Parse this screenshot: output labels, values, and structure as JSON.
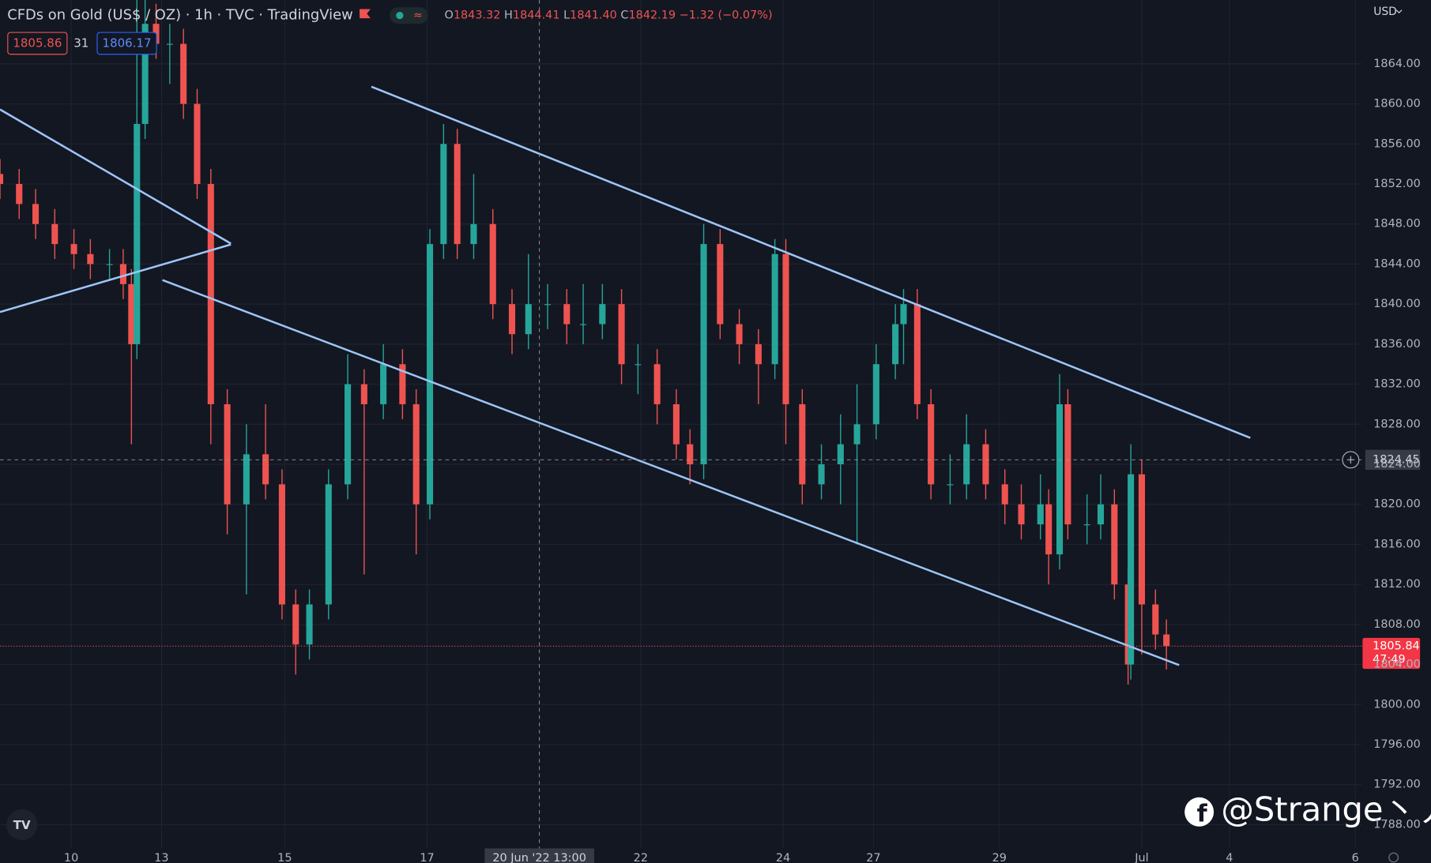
{
  "header": {
    "title": "CFDs on Gold (US$ / OZ) · 1h · TVC · TradingView",
    "ohlc": [
      {
        "key": "O",
        "value": "1843.32"
      },
      {
        "key": "H",
        "value": "1844.41"
      },
      {
        "key": "L",
        "value": "1841.40"
      },
      {
        "key": "C",
        "value": "1842.19"
      }
    ],
    "change": "−1.32 (−0.07%)",
    "sell": "1805.86",
    "spread": "31",
    "buy": "1806.17"
  },
  "watermark": "@Strange丶丿",
  "chart_data": {
    "type": "candlestick",
    "x": [
      0,
      7,
      13,
      20,
      27,
      33,
      40,
      45,
      48,
      50,
      53,
      57,
      62,
      67,
      72,
      77,
      83,
      90,
      97,
      103,
      108,
      113,
      120,
      127,
      133,
      140,
      147,
      152,
      157,
      162,
      167,
      173,
      180,
      187,
      193,
      200,
      207,
      213,
      220,
      227,
      233,
      240,
      247,
      252,
      257,
      263,
      270,
      277,
      283,
      287,
      293,
      300,
      307,
      313,
      320,
      327,
      330,
      335,
      340,
      347,
      353,
      360,
      367,
      373,
      380,
      383,
      387,
      390,
      397,
      402,
      407,
      412,
      413,
      417,
      422,
      426
    ],
    "open": [
      1853,
      1852,
      1850,
      1848,
      1846,
      1845,
      1844,
      1844,
      1842,
      1836,
      1858,
      1868,
      1866,
      1866,
      1860,
      1852,
      1830,
      1820,
      1825,
      1822,
      1810,
      1806,
      1810,
      1822,
      1832,
      1830,
      1834,
      1830,
      1820,
      1846,
      1856,
      1846,
      1848,
      1840,
      1837,
      1840,
      1840,
      1838,
      1838,
      1840,
      1834,
      1834,
      1830,
      1826,
      1824,
      1846,
      1838,
      1836,
      1834,
      1845,
      1830,
      1822,
      1824,
      1826,
      1828,
      1834,
      1838,
      1840,
      1830,
      1822,
      1822,
      1826,
      1822,
      1820,
      1818,
      1820,
      1815,
      1830,
      1818,
      1818,
      1820,
      1812,
      1804,
      1823,
      1810,
      1807
    ],
    "high": [
      1854.5,
      1853.5,
      1851.5,
      1849.5,
      1847.5,
      1846.5,
      1845.5,
      1845.5,
      1843.5,
      1872,
      1871,
      1870,
      1868,
      1867.5,
      1861.5,
      1853.5,
      1831.5,
      1828,
      1830,
      1823.5,
      1811.5,
      1811.5,
      1823.5,
      1835,
      1833.5,
      1836,
      1835.5,
      1831.5,
      1847.5,
      1858,
      1857.5,
      1853,
      1849.5,
      1841.5,
      1845,
      1842,
      1841.5,
      1842,
      1842,
      1841.5,
      1836,
      1835.5,
      1831.5,
      1827.5,
      1848,
      1847.5,
      1839.5,
      1837.5,
      1846.5,
      1846.5,
      1831.5,
      1826,
      1829,
      1832,
      1836,
      1840,
      1841.5,
      1841.5,
      1831.5,
      1825,
      1829,
      1827.5,
      1823.5,
      1822,
      1823,
      1821.5,
      1833,
      1831.5,
      1821,
      1823,
      1821.5,
      1813.5,
      1826,
      1824.5,
      1811.5,
      1808.5
    ],
    "low": [
      1850.5,
      1848.5,
      1846.5,
      1844.5,
      1843.5,
      1842.5,
      1842.5,
      1840.5,
      1826,
      1834.5,
      1856.5,
      1864.5,
      1862,
      1858.5,
      1850.5,
      1826,
      1817,
      1811,
      1820.5,
      1808.5,
      1803,
      1804.5,
      1808.5,
      1820.5,
      1813,
      1828.5,
      1828.5,
      1815,
      1818.5,
      1844.5,
      1844.5,
      1844.5,
      1838.5,
      1835,
      1835.5,
      1837.5,
      1836,
      1836,
      1836.5,
      1832,
      1831,
      1828,
      1824.5,
      1822,
      1822.5,
      1836.5,
      1834,
      1830,
      1832.5,
      1826,
      1820,
      1820.5,
      1820,
      1816,
      1826.5,
      1832.5,
      1834,
      1828.5,
      1820.5,
      1820,
      1820.5,
      1820.5,
      1818,
      1816.5,
      1816.5,
      1812,
      1813.5,
      1816.5,
      1816,
      1816.5,
      1810.5,
      1802,
      1802.5,
      1805,
      1805.5,
      1803.5
    ],
    "close": [
      1852,
      1850,
      1848,
      1846,
      1845,
      1844,
      1844,
      1842,
      1836,
      1858,
      1868,
      1866,
      1866,
      1860,
      1852,
      1830,
      1820,
      1825,
      1822,
      1810,
      1806,
      1810,
      1822,
      1832,
      1830,
      1834,
      1830,
      1820,
      1846,
      1856,
      1846,
      1848,
      1840,
      1837,
      1840,
      1840,
      1838,
      1838,
      1840,
      1834,
      1834,
      1830,
      1826,
      1824,
      1846,
      1838,
      1836,
      1834,
      1845,
      1830,
      1822,
      1824,
      1826,
      1828,
      1834,
      1838,
      1840,
      1830,
      1822,
      1822,
      1826,
      1822,
      1820,
      1818,
      1820,
      1815,
      1830,
      1818,
      1818,
      1820,
      1812,
      1804,
      1823,
      1810,
      1807,
      1805.84
    ],
    "colors": {
      "up": "#26a69a",
      "down": "#ef5350"
    },
    "xlim": [
      0,
      497.3
    ],
    "ylim": [
      1785.63,
      1870.38
    ],
    "xticks": [
      {
        "value": 26,
        "label": "10"
      },
      {
        "value": 59,
        "label": "13"
      },
      {
        "value": 104,
        "label": "15"
      },
      {
        "value": 156,
        "label": "17"
      },
      {
        "value": 234,
        "label": "22"
      },
      {
        "value": 286,
        "label": "24"
      },
      {
        "value": 319,
        "label": "27"
      },
      {
        "value": 365,
        "label": "29"
      },
      {
        "value": 417,
        "label": "Jul"
      },
      {
        "value": 449,
        "label": "4"
      },
      {
        "value": 495,
        "label": "6"
      }
    ],
    "yticks": [
      {
        "value": 1788,
        "label": "1788.00"
      },
      {
        "value": 1792,
        "label": "1792.00"
      },
      {
        "value": 1796,
        "label": "1796.00"
      },
      {
        "value": 1800,
        "label": "1800.00"
      },
      {
        "value": 1804,
        "label": "1804.00"
      },
      {
        "value": 1808,
        "label": "1808.00"
      },
      {
        "value": 1812,
        "label": "1812.00"
      },
      {
        "value": 1816,
        "label": "1816.00"
      },
      {
        "value": 1820,
        "label": "1820.00"
      },
      {
        "value": 1824,
        "label": "1824.00"
      },
      {
        "value": 1828,
        "label": "1828.00"
      },
      {
        "value": 1832,
        "label": "1832.00"
      },
      {
        "value": 1836,
        "label": "1836.00"
      },
      {
        "value": 1840,
        "label": "1840.00"
      },
      {
        "value": 1844,
        "label": "1844.00"
      },
      {
        "value": 1848,
        "label": "1848.00"
      },
      {
        "value": 1852,
        "label": "1852.00"
      },
      {
        "value": 1856,
        "label": "1856.00"
      },
      {
        "value": 1860,
        "label": "1860.00"
      },
      {
        "value": 1864,
        "label": "1864.00"
      }
    ],
    "grid": true,
    "currency": "USD",
    "last_price": 1805.84,
    "countdown": "47:49",
    "crosshair": {
      "x": 197,
      "x_label": "20 Jun '22 13:00",
      "y": 1824.45
    }
  }
}
